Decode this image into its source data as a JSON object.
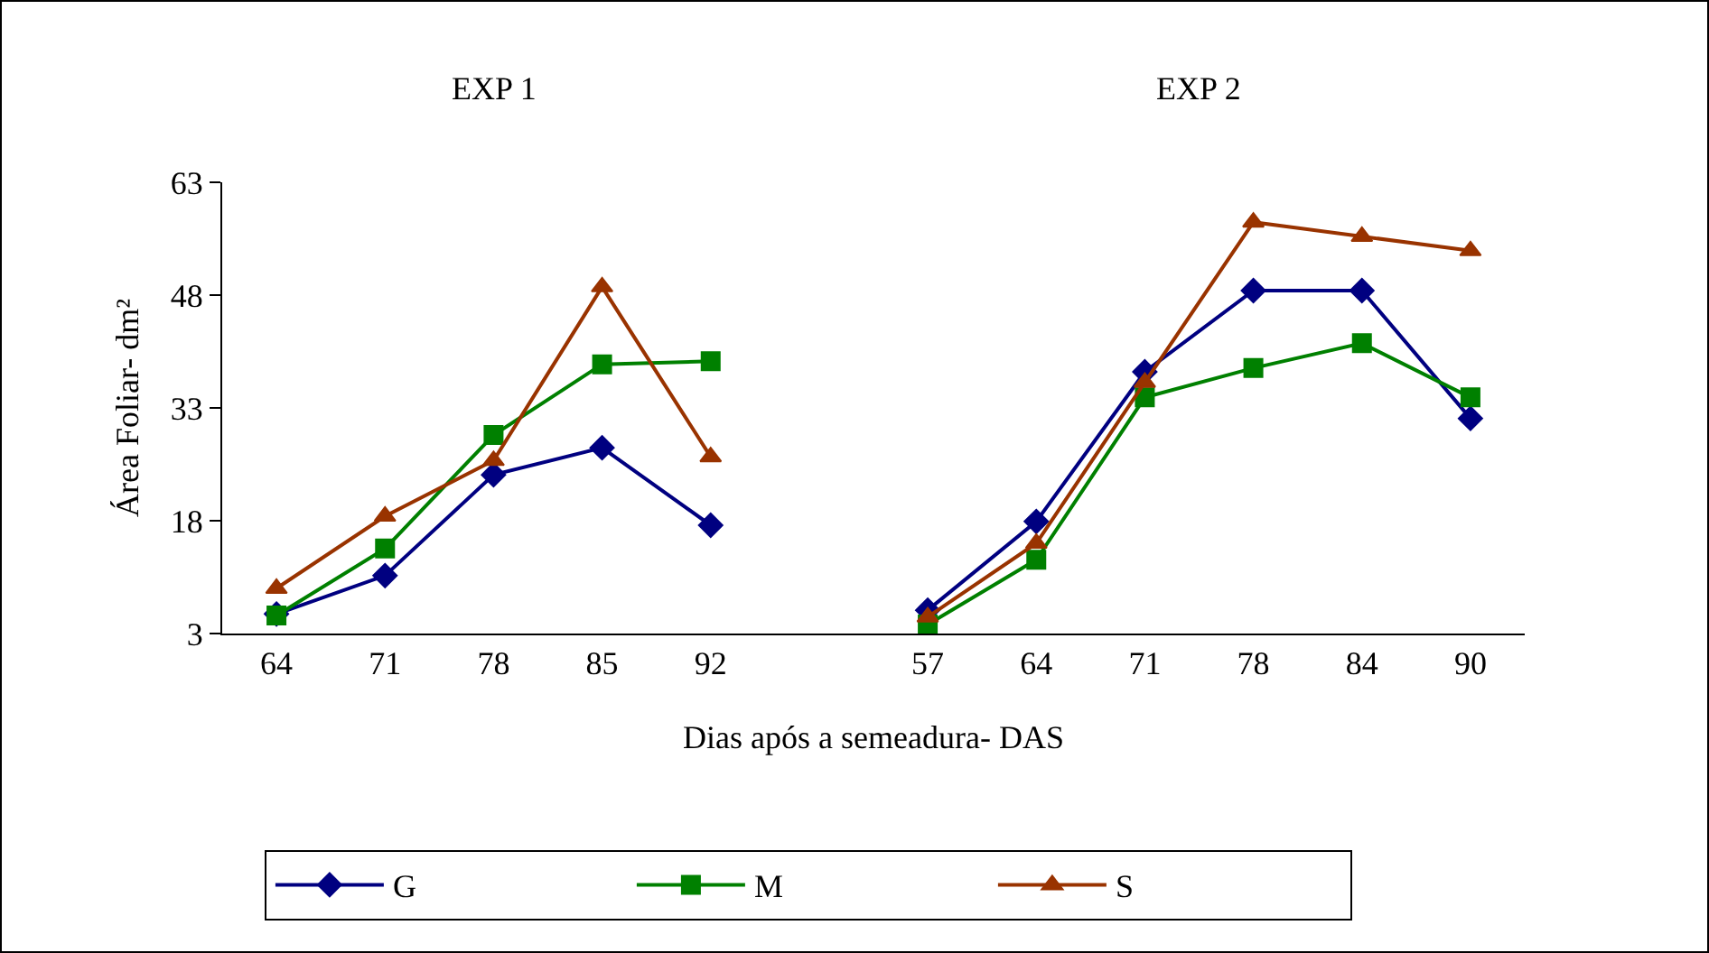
{
  "chart_data": {
    "type": "line",
    "xlabel": "Dias após a semeadura- DAS",
    "ylabel": "Área Foliar- dm²",
    "categories": [
      "64",
      "71",
      "78",
      "85",
      "92",
      null,
      "57",
      "64",
      "71",
      "78",
      "84",
      "90"
    ],
    "ylim": [
      3,
      63
    ],
    "yticks": [
      3,
      18,
      33,
      48,
      63
    ],
    "grid": false,
    "legend": "bottom",
    "line_style": "solid",
    "annotations": [
      "EXP 1",
      "EXP 2"
    ],
    "series": [
      {
        "name": "G",
        "color": "#000080",
        "marker": "diamond",
        "values": [
          5.6,
          10.7,
          24.1,
          27.7,
          17.4,
          null,
          6.1,
          17.9,
          37.8,
          48.6,
          48.6,
          31.6
        ]
      },
      {
        "name": "M",
        "color": "#008000",
        "marker": "square",
        "values": [
          5.4,
          14.3,
          29.4,
          38.8,
          39.2,
          null,
          4.2,
          12.8,
          34.4,
          38.3,
          41.6,
          34.4
        ]
      },
      {
        "name": "S",
        "color": "#993300",
        "marker": "triangle",
        "values": [
          9,
          18.6,
          26,
          49.1,
          26.5,
          null,
          5.2,
          15,
          36.4,
          57.7,
          55.8,
          53.9
        ]
      }
    ]
  }
}
